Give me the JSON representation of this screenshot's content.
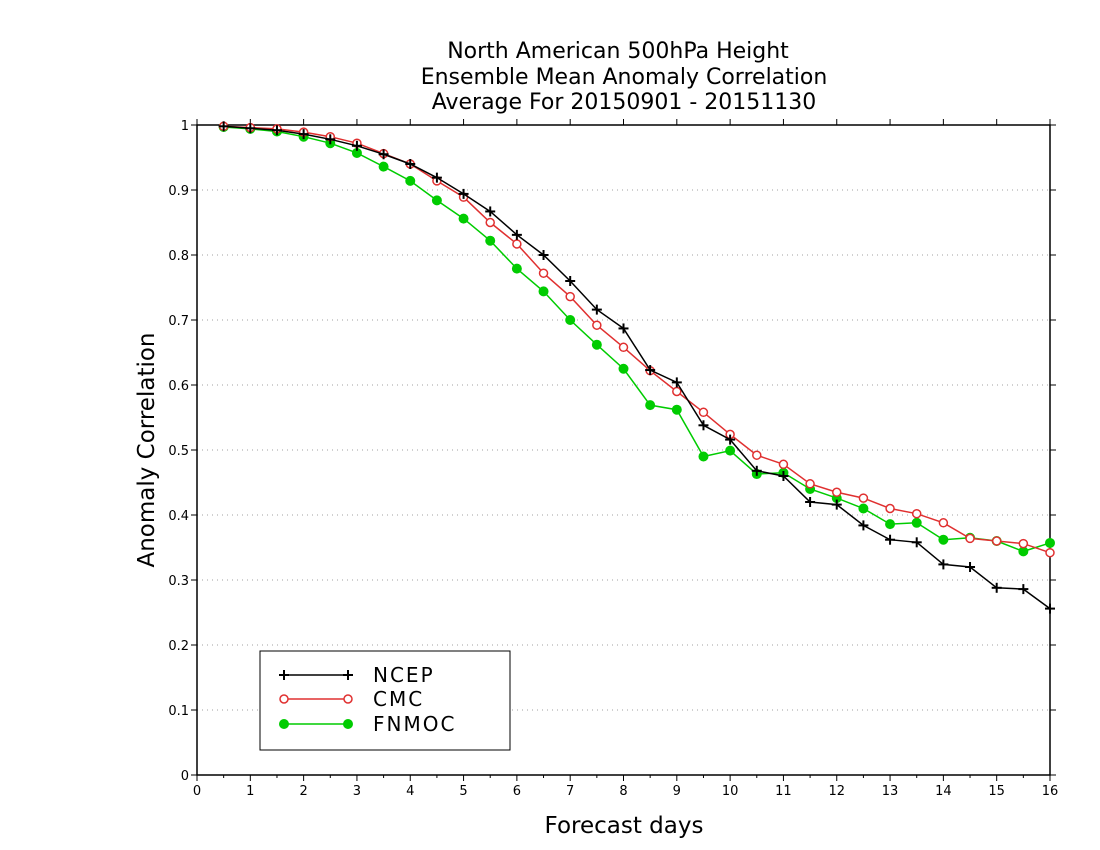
{
  "chart_data": {
    "type": "line",
    "title_lines": [
      "North American 500hPa Height",
      "Ensemble Mean Anomaly Correlation",
      "Average For 20150901 - 20151130"
    ],
    "xlabel": "Forecast days",
    "ylabel": "Anomaly Correlation",
    "xlim": [
      0,
      16
    ],
    "ylim": [
      0,
      1
    ],
    "x_ticks": [
      "0",
      "1",
      "2",
      "3",
      "4",
      "5",
      "6",
      "7",
      "8",
      "9",
      "10",
      "11",
      "12",
      "13",
      "14",
      "15",
      "16"
    ],
    "y_ticks": [
      "0",
      "0.1",
      "0.2",
      "0.3",
      "0.4",
      "0.5",
      "0.6",
      "0.7",
      "0.8",
      "0.9",
      "1"
    ],
    "grid": "horizontal dotted",
    "legend_position": "bottom-left",
    "x": [
      0.5,
      1,
      1.5,
      2,
      2.5,
      3,
      3.5,
      4,
      4.5,
      5,
      5.5,
      6,
      6.5,
      7,
      7.5,
      8,
      8.5,
      9,
      9.5,
      10,
      10.5,
      11,
      11.5,
      12,
      12.5,
      13,
      13.5,
      14,
      14.5,
      15,
      15.5,
      16
    ],
    "series": [
      {
        "name": "NCEP",
        "color": "#000000",
        "marker": "plus",
        "values": [
          0.998,
          0.995,
          0.992,
          0.986,
          0.978,
          0.968,
          0.955,
          0.94,
          0.919,
          0.894,
          0.867,
          0.831,
          0.8,
          0.76,
          0.716,
          0.687,
          0.623,
          0.604,
          0.538,
          0.516,
          0.468,
          0.46,
          0.42,
          0.416,
          0.384,
          0.362,
          0.358,
          0.324,
          0.32,
          0.288,
          0.286,
          0.256
        ]
      },
      {
        "name": "CMC",
        "color": "#e03030",
        "marker": "open-circle",
        "values": [
          0.998,
          0.996,
          0.994,
          0.989,
          0.982,
          0.972,
          0.956,
          0.94,
          0.914,
          0.889,
          0.85,
          0.817,
          0.772,
          0.736,
          0.692,
          0.658,
          0.622,
          0.59,
          0.558,
          0.524,
          0.492,
          0.478,
          0.448,
          0.435,
          0.426,
          0.41,
          0.402,
          0.388,
          0.364,
          0.36,
          0.356,
          0.342
        ]
      },
      {
        "name": "FNMOC",
        "color": "#00cc00",
        "marker": "filled-circle",
        "values": [
          0.997,
          0.994,
          0.99,
          0.982,
          0.972,
          0.957,
          0.936,
          0.914,
          0.884,
          0.856,
          0.822,
          0.779,
          0.744,
          0.7,
          0.662,
          0.625,
          0.569,
          0.562,
          0.49,
          0.499,
          0.463,
          0.465,
          0.44,
          0.426,
          0.41,
          0.386,
          0.388,
          0.362,
          0.365,
          0.36,
          0.344,
          0.357
        ]
      }
    ]
  }
}
